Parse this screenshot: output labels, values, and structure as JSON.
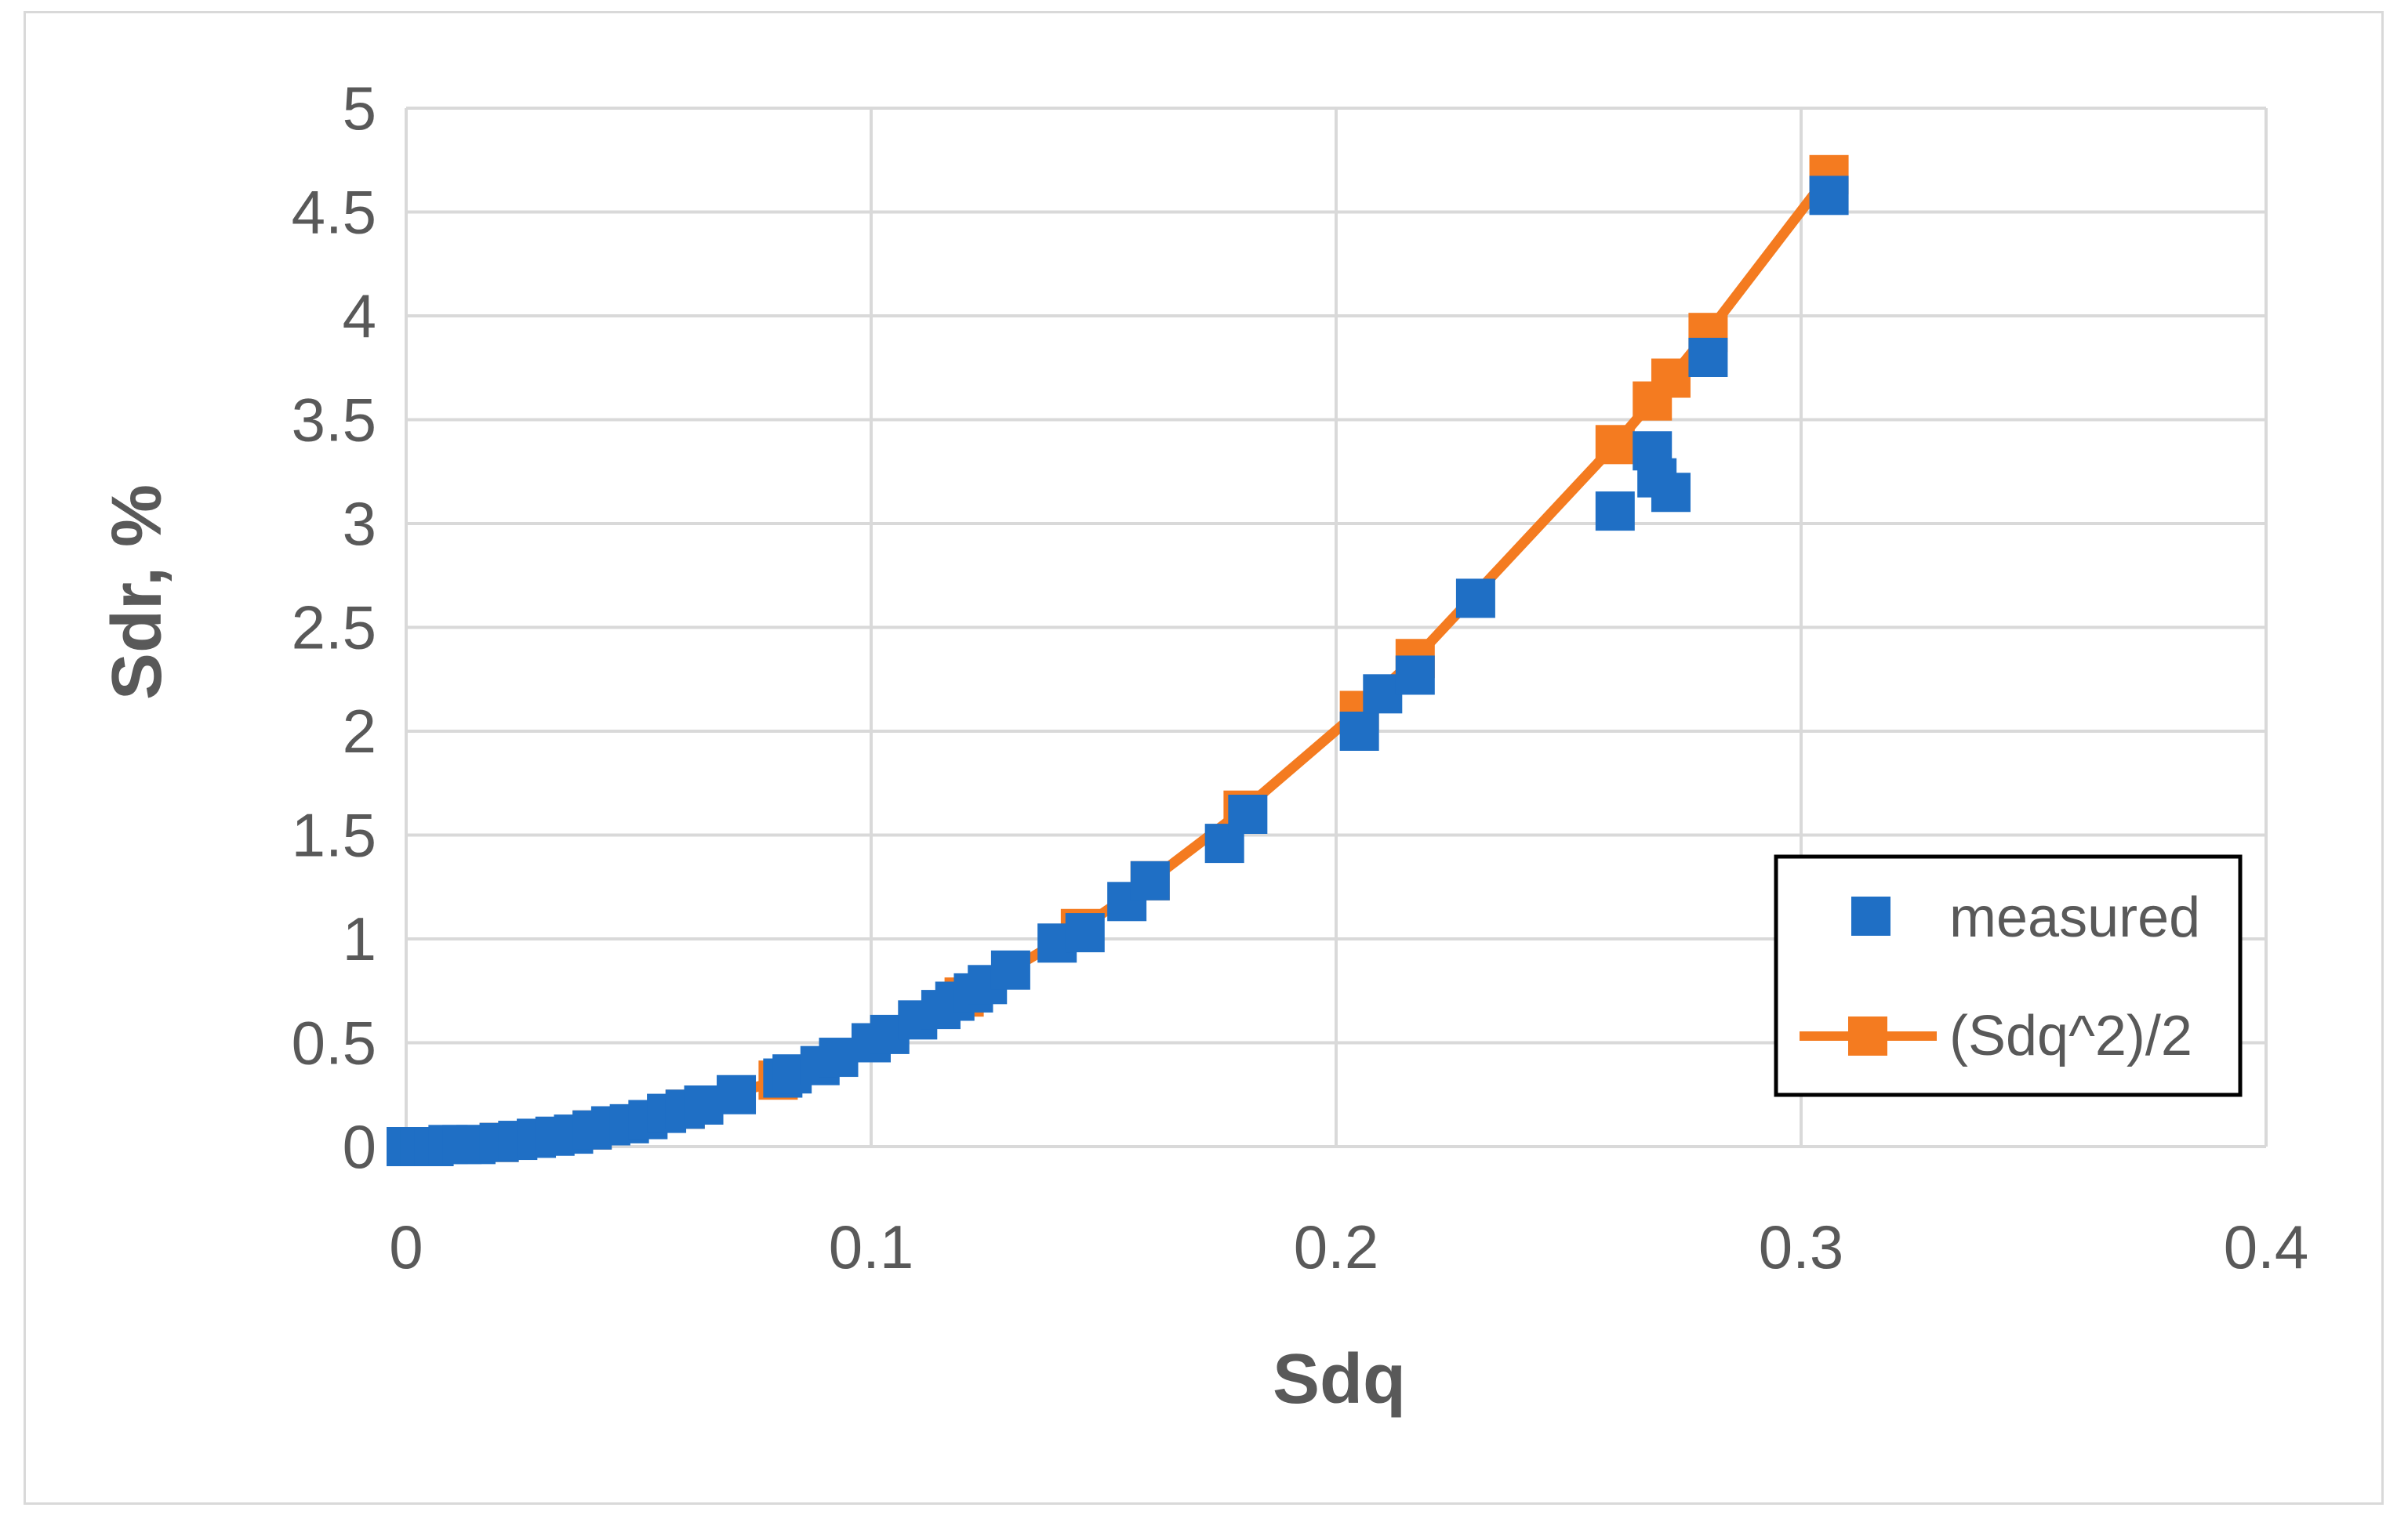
{
  "chart_data": {
    "type": "scatter",
    "title": "",
    "xlabel": "Sdq",
    "ylabel": "Sdr, %",
    "xlim": [
      0,
      0.4
    ],
    "ylim": [
      0,
      5
    ],
    "xticks": [
      "0",
      "0.1",
      "0.2",
      "0.3",
      "0.4"
    ],
    "yticks": [
      "0",
      "0.5",
      "1",
      "1.5",
      "2",
      "2.5",
      "3",
      "3.5",
      "4",
      "4.5",
      "5"
    ],
    "grid": true,
    "legend_position": "bottom-right",
    "series": [
      {
        "name": "measured",
        "kind": "scatter",
        "color": "#1f6fc5",
        "marker": "square",
        "x": [
          0.0,
          0.003,
          0.006,
          0.009,
          0.012,
          0.015,
          0.02,
          0.024,
          0.028,
          0.032,
          0.036,
          0.04,
          0.044,
          0.048,
          0.052,
          0.056,
          0.06,
          0.064,
          0.071,
          0.081,
          0.083,
          0.089,
          0.093,
          0.1,
          0.104,
          0.11,
          0.115,
          0.118,
          0.122,
          0.125,
          0.13,
          0.14,
          0.146,
          0.155,
          0.16,
          0.176,
          0.181,
          0.205,
          0.21,
          0.217,
          0.23,
          0.26,
          0.268,
          0.269,
          0.272,
          0.28,
          0.306
        ],
        "y": [
          0.0,
          0.0,
          0.0,
          0.01,
          0.01,
          0.01,
          0.02,
          0.03,
          0.04,
          0.05,
          0.06,
          0.08,
          0.1,
          0.11,
          0.13,
          0.16,
          0.18,
          0.2,
          0.25,
          0.33,
          0.35,
          0.39,
          0.43,
          0.5,
          0.54,
          0.61,
          0.66,
          0.7,
          0.74,
          0.78,
          0.85,
          0.98,
          1.03,
          1.18,
          1.28,
          1.46,
          1.6,
          2.0,
          2.18,
          2.27,
          2.64,
          3.06,
          3.35,
          3.22,
          3.15,
          3.8,
          4.58
        ]
      },
      {
        "name": "(Sdq^2)/2",
        "kind": "line",
        "color": "#f47b20",
        "marker": "square",
        "x": [
          0.0,
          0.02,
          0.04,
          0.06,
          0.08,
          0.1,
          0.12,
          0.145,
          0.16,
          0.18,
          0.205,
          0.217,
          0.26,
          0.268,
          0.272,
          0.28,
          0.306
        ],
        "y": [
          0.0,
          0.02,
          0.08,
          0.18,
          0.32,
          0.5,
          0.72,
          1.05,
          1.28,
          1.62,
          2.1,
          2.35,
          3.38,
          3.59,
          3.7,
          3.92,
          4.68
        ]
      }
    ]
  }
}
